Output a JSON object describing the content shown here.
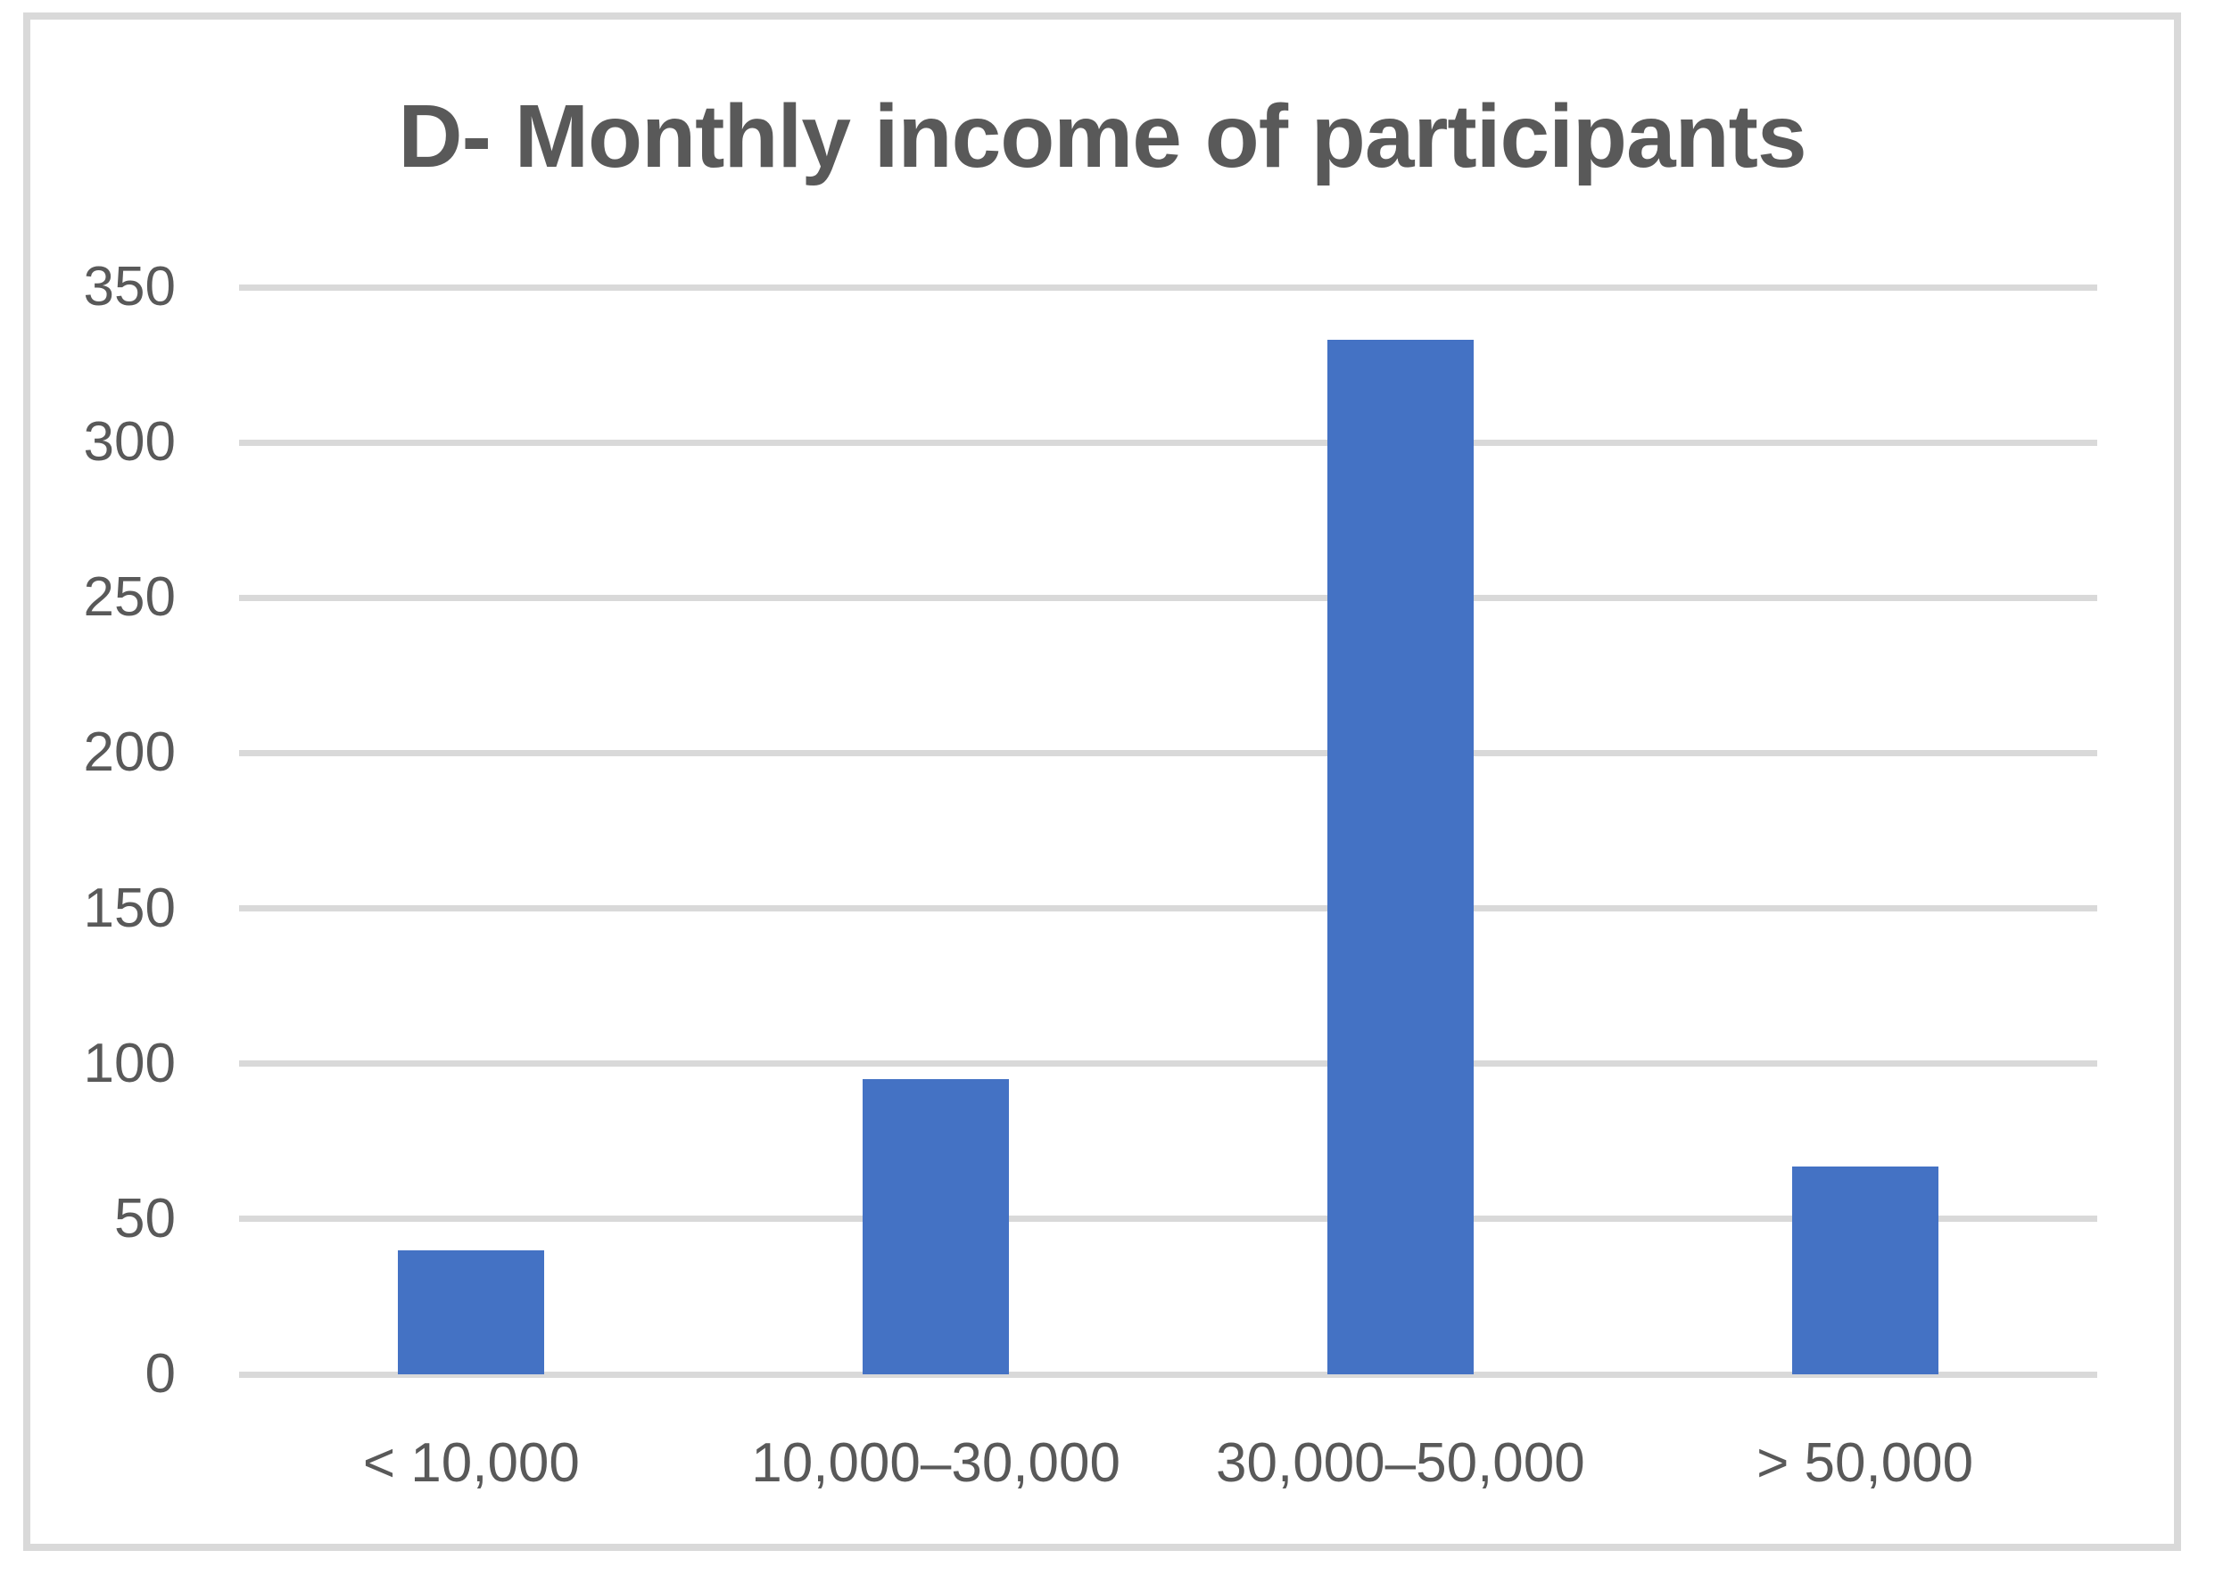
{
  "chart_data": {
    "type": "bar",
    "title": "D- Monthly income of participants",
    "categories": [
      "< 10,000",
      "10,000–30,000",
      "30,000–50,000",
      "> 50,000"
    ],
    "values": [
      40,
      95,
      333,
      67
    ],
    "xlabel": "",
    "ylabel": "",
    "ylim": [
      0,
      350
    ],
    "yticks": [
      0,
      50,
      100,
      150,
      200,
      250,
      300,
      350
    ],
    "grid": true,
    "legend": false,
    "colors": {
      "bar": "#4472C4",
      "gridline": "#D9D9D9",
      "frame_border": "#D9D9D9",
      "text": "#595959",
      "background": "#FFFFFF"
    }
  }
}
